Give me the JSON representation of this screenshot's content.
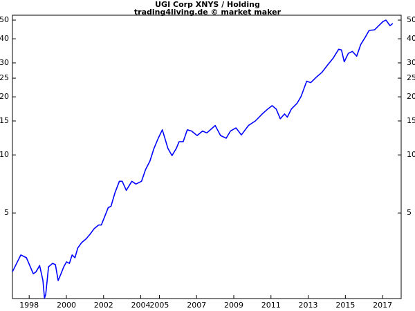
{
  "chart_data": {
    "type": "line",
    "title": "UGI Corp XNYS / Holding",
    "subtitle": "trading4living.de © market maker",
    "log_y": true,
    "mirror_y_axis": true,
    "color": "#0000ff",
    "xlim": [
      1997.1,
      2018.0
    ],
    "xticks": [
      1998,
      2000,
      2002,
      2004,
      2005,
      2007,
      2009,
      2011,
      2013,
      2015,
      2017
    ],
    "ylim": [
      1.8,
      53
    ],
    "yticks": [
      5,
      10,
      15,
      20,
      25,
      30,
      40,
      50
    ],
    "x": [
      1997.1,
      1997.55,
      1997.85,
      1998.22,
      1998.37,
      1998.56,
      1998.74,
      1998.82,
      1998.89,
      1999.04,
      1999.26,
      1999.41,
      1999.56,
      1999.71,
      1999.86,
      2000.01,
      2000.16,
      2000.31,
      2000.46,
      2000.61,
      2000.83,
      2001.06,
      2001.28,
      2001.5,
      2001.73,
      2001.88,
      2002.25,
      2002.4,
      2002.62,
      2002.85,
      2003.0,
      2003.22,
      2003.52,
      2003.74,
      2004.04,
      2004.26,
      2004.49,
      2004.71,
      2004.94,
      2005.16,
      2005.46,
      2005.68,
      2005.91,
      2006.06,
      2006.28,
      2006.5,
      2006.73,
      2007.03,
      2007.32,
      2007.55,
      2008.0,
      2008.29,
      2008.59,
      2008.82,
      2009.12,
      2009.41,
      2009.79,
      2010.16,
      2010.53,
      2010.83,
      2011.06,
      2011.28,
      2011.5,
      2011.73,
      2011.88,
      2012.1,
      2012.4,
      2012.62,
      2012.92,
      2013.14,
      2013.44,
      2013.74,
      2014.04,
      2014.34,
      2014.64,
      2014.79,
      2014.94,
      2015.16,
      2015.38,
      2015.61,
      2015.83,
      2016.06,
      2016.28,
      2016.57,
      2016.8,
      2017.03,
      2017.18,
      2017.4,
      2017.55
    ],
    "values": [
      2.48,
      3.03,
      2.93,
      2.42,
      2.48,
      2.67,
      2.23,
      1.81,
      1.89,
      2.63,
      2.74,
      2.7,
      2.23,
      2.42,
      2.63,
      2.79,
      2.74,
      3.03,
      2.93,
      3.29,
      3.52,
      3.67,
      3.89,
      4.15,
      4.33,
      4.33,
      5.33,
      5.42,
      6.39,
      7.3,
      7.3,
      6.55,
      7.3,
      7.06,
      7.3,
      8.4,
      9.28,
      10.8,
      12.2,
      13.5,
      10.8,
      9.92,
      10.8,
      11.7,
      11.7,
      13.5,
      13.3,
      12.6,
      13.3,
      13.0,
      14.2,
      12.6,
      12.2,
      13.3,
      13.8,
      12.7,
      14.2,
      15.0,
      16.3,
      17.3,
      18.0,
      17.3,
      15.4,
      16.3,
      15.7,
      17.3,
      18.5,
      20.1,
      24.1,
      23.7,
      25.3,
      26.8,
      29.2,
      31.7,
      35.3,
      35.0,
      30.4,
      33.6,
      34.4,
      32.5,
      37.4,
      40.6,
      44.2,
      44.5,
      46.8,
      49.2,
      50,
      46.8,
      48.0
    ]
  }
}
